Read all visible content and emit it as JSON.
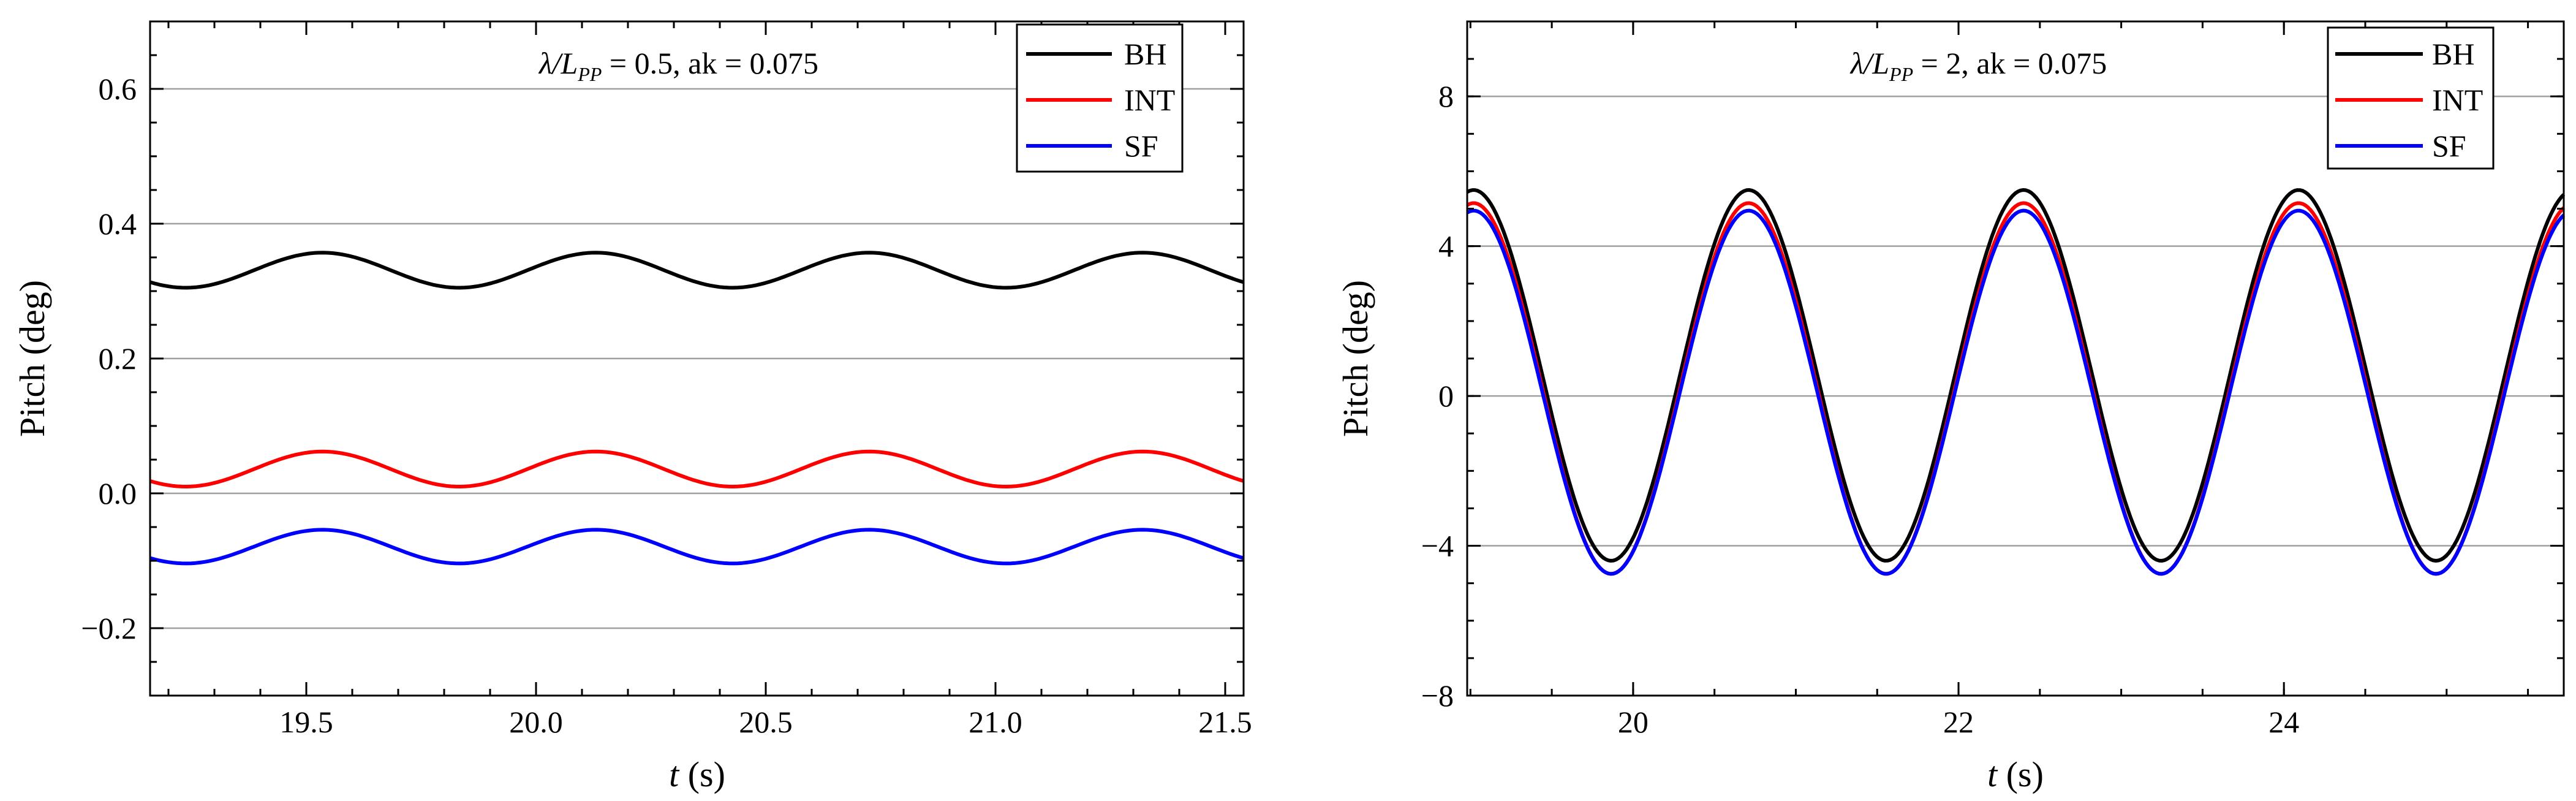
{
  "chart_data": [
    {
      "type": "line",
      "annotation": {
        "prefix": "λ/L",
        "sub": "PP",
        "suffix": " = 0.5, ak = 0.075"
      },
      "xlabel": {
        "italic": "t",
        "rest": " (s)"
      },
      "ylabel": "Pitch (deg)",
      "xlim": [
        19.16,
        21.54
      ],
      "ylim": [
        -0.3,
        0.7
      ],
      "xticks": [
        19.5,
        20.0,
        20.5,
        21.0,
        21.5
      ],
      "xtick_labels": [
        "19.5",
        "20.0",
        "20.5",
        "21.0",
        "21.5"
      ],
      "yticks": [
        -0.2,
        0.0,
        0.2,
        0.4,
        0.6
      ],
      "ytick_labels": [
        "−0.2",
        "0.0",
        "0.2",
        "0.4",
        "0.6"
      ],
      "grid": "horizontal",
      "legend_position": "top-right",
      "period": 0.595,
      "phase_peak": 19.535,
      "samples": 240,
      "series": [
        {
          "name": "BH",
          "color": "#000000",
          "mean": 0.331,
          "amplitude": 0.026
        },
        {
          "name": "INT",
          "color": "#ff0000",
          "mean": 0.036,
          "amplitude": 0.026
        },
        {
          "name": "SF",
          "color": "#0000ff",
          "mean": -0.079,
          "amplitude": 0.025
        }
      ]
    },
    {
      "type": "line",
      "annotation": {
        "prefix": "λ/L",
        "sub": "PP",
        "suffix": " = 2, ak = 0.075"
      },
      "xlabel": {
        "italic": "t",
        "rest": " (s)"
      },
      "ylabel": "Pitch (deg)",
      "xlim": [
        18.98,
        25.72
      ],
      "ylim": [
        -8,
        10
      ],
      "xticks": [
        20,
        22,
        24
      ],
      "xtick_labels": [
        "20",
        "22",
        "24"
      ],
      "yticks": [
        -8,
        -4,
        0,
        4,
        8
      ],
      "ytick_labels": [
        "−8",
        "−4",
        "0",
        "4",
        "8"
      ],
      "grid": "horizontal",
      "legend_position": "top-right",
      "period": 1.69,
      "phase_peak": 20.71,
      "samples": 420,
      "series": [
        {
          "name": "BH",
          "color": "#000000",
          "mean": 0.55,
          "amplitude": 4.95
        },
        {
          "name": "INT",
          "color": "#ff0000",
          "mean": 0.2,
          "amplitude": 4.95
        },
        {
          "name": "SF",
          "color": "#0000ff",
          "mean": 0.1,
          "amplitude": 4.85
        }
      ]
    }
  ]
}
